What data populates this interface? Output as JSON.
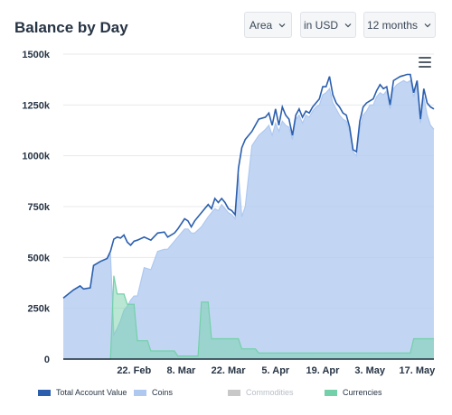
{
  "header": {
    "title": "Balance by Day",
    "chart_type_select": "Area",
    "currency_select": "in USD",
    "range_select": "12 months"
  },
  "icons": {
    "menu": "hamburger-menu-icon",
    "dropdown": "chevron-down-icon"
  },
  "colors": {
    "total": "#2b5fae",
    "coins": "#aec8f0",
    "commodities": "#c8c8c8",
    "currencies": "#73d0a8",
    "grid": "#e6e9ee"
  },
  "chart_data": {
    "type": "area",
    "title": "Balance by Day",
    "ylim": [
      0,
      1500000
    ],
    "yticks": [
      0,
      250000,
      500000,
      750000,
      1000000,
      1250000,
      1500000
    ],
    "ytick_labels": [
      "0",
      "250k",
      "500k",
      "750k",
      "1000k",
      "1250k",
      "1500k"
    ],
    "xticks": [
      {
        "day": 21,
        "label": "22. Feb"
      },
      {
        "day": 35,
        "label": "8. Mar"
      },
      {
        "day": 49,
        "label": "22. Mar"
      },
      {
        "day": 63,
        "label": "5. Apr"
      },
      {
        "day": 77,
        "label": "19. Apr"
      },
      {
        "day": 91,
        "label": "3. May"
      },
      {
        "day": 105,
        "label": "17. May"
      }
    ],
    "x_start": "2. Feb",
    "series": [
      {
        "name": "Total Account Value",
        "points": [
          [
            0,
            300000
          ],
          [
            3,
            340000
          ],
          [
            5,
            360000
          ],
          [
            6,
            345000
          ],
          [
            8,
            350000
          ],
          [
            9,
            460000
          ],
          [
            11,
            480000
          ],
          [
            13,
            495000
          ],
          [
            14,
            530000
          ],
          [
            15,
            590000
          ],
          [
            16,
            600000
          ],
          [
            17,
            595000
          ],
          [
            18,
            610000
          ],
          [
            19,
            575000
          ],
          [
            20,
            560000
          ],
          [
            21,
            580000
          ],
          [
            22,
            585000
          ],
          [
            24,
            600000
          ],
          [
            26,
            585000
          ],
          [
            28,
            620000
          ],
          [
            30,
            625000
          ],
          [
            31,
            600000
          ],
          [
            33,
            620000
          ],
          [
            34,
            640000
          ],
          [
            36,
            690000
          ],
          [
            37,
            680000
          ],
          [
            38,
            650000
          ],
          [
            39,
            680000
          ],
          [
            41,
            720000
          ],
          [
            43,
            760000
          ],
          [
            44,
            740000
          ],
          [
            45,
            790000
          ],
          [
            46,
            770000
          ],
          [
            47,
            790000
          ],
          [
            48,
            770000
          ],
          [
            49,
            740000
          ],
          [
            50,
            730000
          ],
          [
            51,
            710000
          ],
          [
            52,
            940000
          ],
          [
            53,
            1040000
          ],
          [
            54,
            1080000
          ],
          [
            56,
            1120000
          ],
          [
            58,
            1180000
          ],
          [
            60,
            1190000
          ],
          [
            61,
            1210000
          ],
          [
            62,
            1150000
          ],
          [
            63,
            1230000
          ],
          [
            64,
            1150000
          ],
          [
            65,
            1240000
          ],
          [
            66,
            1200000
          ],
          [
            67,
            1180000
          ],
          [
            68,
            1100000
          ],
          [
            69,
            1200000
          ],
          [
            70,
            1230000
          ],
          [
            71,
            1190000
          ],
          [
            72,
            1220000
          ],
          [
            73,
            1210000
          ],
          [
            74,
            1240000
          ],
          [
            75,
            1260000
          ],
          [
            76,
            1280000
          ],
          [
            77,
            1340000
          ],
          [
            78,
            1340000
          ],
          [
            79,
            1390000
          ],
          [
            80,
            1300000
          ],
          [
            81,
            1260000
          ],
          [
            82,
            1240000
          ],
          [
            83,
            1210000
          ],
          [
            84,
            1200000
          ],
          [
            85,
            1140000
          ],
          [
            86,
            1030000
          ],
          [
            87,
            1020000
          ],
          [
            88,
            1170000
          ],
          [
            89,
            1240000
          ],
          [
            90,
            1260000
          ],
          [
            91,
            1270000
          ],
          [
            92,
            1280000
          ],
          [
            93,
            1320000
          ],
          [
            94,
            1350000
          ],
          [
            95,
            1330000
          ],
          [
            96,
            1340000
          ],
          [
            97,
            1250000
          ],
          [
            98,
            1370000
          ],
          [
            99,
            1380000
          ],
          [
            100,
            1390000
          ],
          [
            101,
            1395000
          ],
          [
            102,
            1400000
          ],
          [
            103,
            1400000
          ],
          [
            104,
            1310000
          ],
          [
            105,
            1370000
          ],
          [
            106,
            1180000
          ],
          [
            107,
            1330000
          ],
          [
            108,
            1260000
          ],
          [
            109,
            1240000
          ],
          [
            110,
            1230000
          ]
        ]
      },
      {
        "name": "Coins",
        "points": [
          [
            0,
            300000
          ],
          [
            3,
            340000
          ],
          [
            5,
            360000
          ],
          [
            6,
            345000
          ],
          [
            8,
            350000
          ],
          [
            9,
            460000
          ],
          [
            11,
            480000
          ],
          [
            13,
            495000
          ],
          [
            14,
            515000
          ],
          [
            15,
            120000
          ],
          [
            16,
            150000
          ],
          [
            17,
            190000
          ],
          [
            18,
            240000
          ],
          [
            19,
            260000
          ],
          [
            20,
            290000
          ],
          [
            21,
            310000
          ],
          [
            22,
            310000
          ],
          [
            24,
            450000
          ],
          [
            26,
            440000
          ],
          [
            28,
            530000
          ],
          [
            30,
            540000
          ],
          [
            31,
            540000
          ],
          [
            33,
            580000
          ],
          [
            34,
            600000
          ],
          [
            36,
            640000
          ],
          [
            37,
            640000
          ],
          [
            38,
            620000
          ],
          [
            39,
            620000
          ],
          [
            41,
            650000
          ],
          [
            43,
            700000
          ],
          [
            44,
            720000
          ],
          [
            45,
            740000
          ],
          [
            46,
            730000
          ],
          [
            47,
            760000
          ],
          [
            48,
            740000
          ],
          [
            49,
            720000
          ],
          [
            50,
            710000
          ],
          [
            51,
            690000
          ],
          [
            52,
            910000
          ],
          [
            53,
            700000
          ],
          [
            54,
            750000
          ],
          [
            56,
            1050000
          ],
          [
            58,
            1100000
          ],
          [
            60,
            1130000
          ],
          [
            61,
            1150000
          ],
          [
            62,
            1100000
          ],
          [
            63,
            1160000
          ],
          [
            64,
            1120000
          ],
          [
            65,
            1170000
          ],
          [
            66,
            1150000
          ],
          [
            67,
            1140000
          ],
          [
            68,
            1080000
          ],
          [
            69,
            1180000
          ],
          [
            70,
            1200000
          ],
          [
            71,
            1160000
          ],
          [
            72,
            1200000
          ],
          [
            73,
            1190000
          ],
          [
            74,
            1220000
          ],
          [
            75,
            1240000
          ],
          [
            76,
            1250000
          ],
          [
            77,
            1300000
          ],
          [
            78,
            1310000
          ],
          [
            79,
            1330000
          ],
          [
            80,
            1260000
          ],
          [
            81,
            1230000
          ],
          [
            82,
            1200000
          ],
          [
            83,
            1180000
          ],
          [
            84,
            1170000
          ],
          [
            85,
            1120000
          ],
          [
            86,
            1020000
          ],
          [
            87,
            1000000
          ],
          [
            88,
            1130000
          ],
          [
            89,
            1200000
          ],
          [
            90,
            1220000
          ],
          [
            91,
            1250000
          ],
          [
            92,
            1250000
          ],
          [
            93,
            1290000
          ],
          [
            94,
            1310000
          ],
          [
            95,
            1300000
          ],
          [
            96,
            1320000
          ],
          [
            97,
            1230000
          ],
          [
            98,
            1330000
          ],
          [
            99,
            1350000
          ],
          [
            100,
            1360000
          ],
          [
            101,
            1370000
          ],
          [
            102,
            1360000
          ],
          [
            103,
            1370000
          ],
          [
            104,
            1290000
          ],
          [
            105,
            1350000
          ],
          [
            106,
            1160000
          ],
          [
            107,
            1290000
          ],
          [
            108,
            1200000
          ],
          [
            109,
            1150000
          ],
          [
            110,
            1130000
          ]
        ]
      },
      {
        "name": "Commodities",
        "points": []
      },
      {
        "name": "Currencies",
        "points": [
          [
            0,
            0
          ],
          [
            14,
            0
          ],
          [
            15,
            410000
          ],
          [
            16,
            320000
          ],
          [
            18,
            320000
          ],
          [
            19,
            270000
          ],
          [
            21,
            270000
          ],
          [
            22,
            90000
          ],
          [
            25,
            90000
          ],
          [
            26,
            40000
          ],
          [
            33,
            40000
          ],
          [
            34,
            15000
          ],
          [
            40,
            15000
          ],
          [
            41,
            280000
          ],
          [
            43,
            280000
          ],
          [
            44,
            100000
          ],
          [
            52,
            100000
          ],
          [
            53,
            50000
          ],
          [
            57,
            50000
          ],
          [
            58,
            30000
          ],
          [
            103,
            30000
          ],
          [
            104,
            100000
          ],
          [
            110,
            100000
          ]
        ]
      }
    ]
  }
}
